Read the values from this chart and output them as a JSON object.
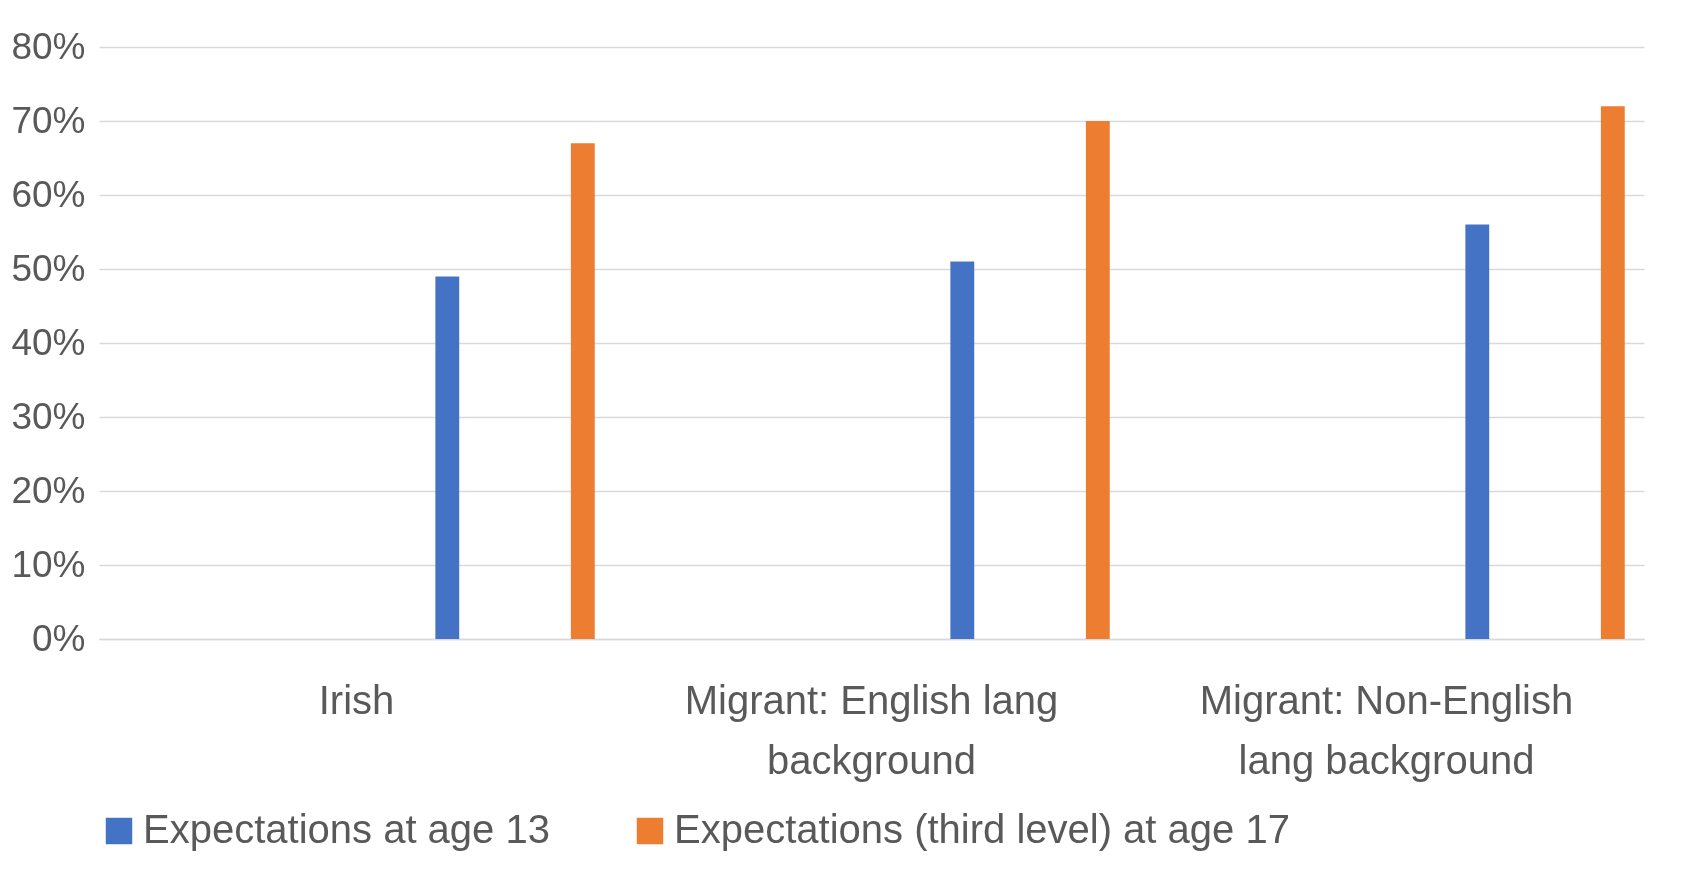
{
  "chart_data": {
    "type": "bar",
    "categories": [
      "Irish",
      "Migrant: English lang background",
      "Migrant: Non-English lang background"
    ],
    "series": [
      {
        "name": "Expectations at age 13",
        "color": "#4472c4",
        "values": [
          49,
          51,
          56
        ]
      },
      {
        "name": "Expectations (third level) at age 17",
        "color": "#ed7d31",
        "values": [
          67,
          70,
          72
        ]
      }
    ],
    "ylim": [
      0,
      80
    ],
    "yticks": [
      {
        "value": 0,
        "label": "0%"
      },
      {
        "value": 10,
        "label": "10%"
      },
      {
        "value": 20,
        "label": "20%"
      },
      {
        "value": 30,
        "label": "30%"
      },
      {
        "value": 40,
        "label": "40%"
      },
      {
        "value": 50,
        "label": "50%"
      },
      {
        "value": 60,
        "label": "60%"
      },
      {
        "value": 70,
        "label": "70%"
      },
      {
        "value": 80,
        "label": "80%"
      }
    ],
    "grid": "y",
    "legend": "bottom"
  }
}
